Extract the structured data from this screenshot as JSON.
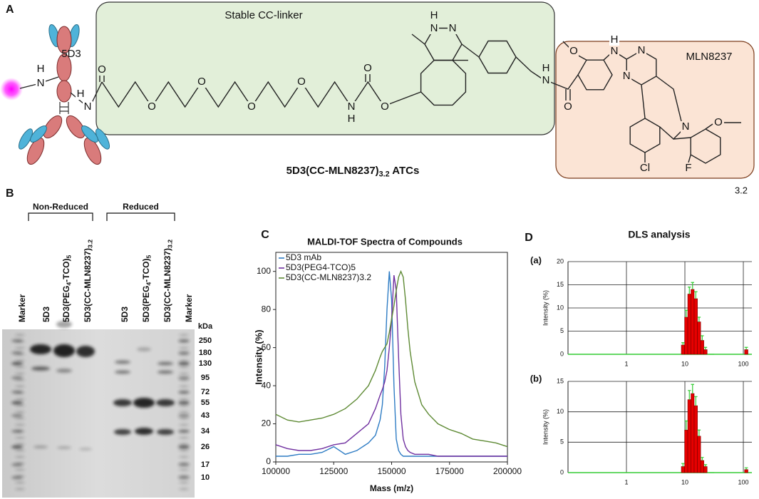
{
  "panel_a": {
    "label": "A",
    "antibody": "5D3",
    "linker": "Stable CC-linker",
    "payload": "MLN8237",
    "title": [
      "5D3(CC-MLN8237)",
      "3.2",
      " ATCs"
    ],
    "ratio": "3.2",
    "atoms": [
      "H",
      "N",
      "H",
      "N",
      "O",
      "O",
      "O",
      "O",
      "O",
      "N",
      "H",
      "O",
      "O",
      "H",
      "N",
      "N",
      "H",
      "N",
      "O",
      "O",
      "H",
      "N",
      "N",
      "N",
      "N",
      "O",
      "Cl",
      "F"
    ]
  },
  "panel_b": {
    "label": "B",
    "groups": [
      "Non-Reduced",
      "Reduced"
    ],
    "lanes": [
      [
        "Marker"
      ],
      [
        "5D3"
      ],
      [
        "5D3(PEG",
        "4",
        "-TCO)",
        "5"
      ],
      [
        "5D3(CC-MLN8237)",
        "3.2"
      ],
      [
        "5D3"
      ],
      [
        "5D3(PEG",
        "4",
        "-TCO)",
        "5"
      ],
      [
        "5D3(CC-MLN8237)",
        "3.2"
      ],
      [
        "Marker"
      ]
    ],
    "unit": "kDa",
    "markers": [
      250,
      180,
      130,
      95,
      72,
      55,
      43,
      34,
      26,
      17,
      10
    ]
  },
  "panel_d": {
    "label": "D",
    "title": "DLS analysis"
  },
  "chart_data": [
    {
      "type": "line",
      "panel": "C",
      "title": "MALDI-TOF Spectra of Compounds",
      "xlabel": "Mass (m/z)",
      "ylabel": "Intensity (%)",
      "x": [
        100000,
        105000,
        110000,
        115000,
        120000,
        125000,
        130000,
        135000,
        140000,
        143000,
        145000,
        146000,
        147000,
        148000,
        149000,
        150000,
        151000,
        152000,
        153000,
        154000,
        155000,
        156000,
        157000,
        158000,
        160000,
        163000,
        166000,
        170000,
        175000,
        180000,
        185000,
        190000,
        195000,
        200000
      ],
      "series": [
        {
          "name": "5D3 mAb",
          "color": "#2e7cc4",
          "values": [
            3,
            3,
            4,
            4,
            5,
            8,
            4,
            6,
            10,
            14,
            22,
            30,
            50,
            80,
            100,
            85,
            40,
            12,
            6,
            4,
            3,
            3,
            3,
            3,
            3,
            3,
            3,
            3,
            3,
            3,
            3,
            3,
            3,
            3
          ]
        },
        {
          "name": "5D3(PEG4-TCO)5",
          "color": "#7030a0",
          "values": [
            9,
            7,
            6,
            6,
            7,
            9,
            10,
            15,
            20,
            28,
            35,
            38,
            42,
            48,
            60,
            75,
            98,
            90,
            55,
            25,
            12,
            8,
            6,
            5,
            4,
            4,
            4,
            3,
            3,
            3,
            3,
            3,
            3,
            3
          ]
        },
        {
          "name": "5D3(CC-MLN8237)3.2",
          "color": "#5e8a34",
          "values": [
            25,
            22,
            21,
            22,
            23,
            25,
            28,
            33,
            40,
            48,
            55,
            58,
            60,
            62,
            68,
            75,
            82,
            90,
            97,
            100,
            97,
            85,
            70,
            58,
            42,
            30,
            25,
            20,
            17,
            15,
            12,
            11,
            10,
            8
          ]
        }
      ],
      "xlim": [
        100000,
        200000
      ],
      "xticks": [
        100000,
        125000,
        150000,
        175000,
        200000
      ],
      "ylim": [
        0,
        110
      ],
      "yticks": [
        0,
        20,
        40,
        60,
        80,
        100
      ],
      "legend": "upper left"
    },
    {
      "type": "histogram",
      "subtitle": "(a)",
      "ylabel": "Intensity (%)",
      "xscale": "log",
      "color": "#e60000",
      "error_color": "#33cc33",
      "bins": [
        8.7,
        9.9,
        11.2,
        12.7,
        14.4,
        16.4,
        18.6,
        21.1,
        24,
        105,
        120
      ],
      "values": [
        2,
        8,
        13,
        14,
        12,
        7,
        3,
        1,
        0,
        1
      ],
      "errors": [
        0.5,
        1.5,
        1.5,
        1.5,
        1.5,
        1,
        1,
        0.5,
        0,
        0.5
      ],
      "xlim": [
        0.1,
        140
      ],
      "xticks": [
        1,
        10,
        100
      ],
      "ylim": [
        0,
        20
      ],
      "yticks": [
        0,
        5,
        10,
        15,
        20
      ],
      "grid": true
    },
    {
      "type": "histogram",
      "subtitle": "(b)",
      "ylabel": "Intensity (%)",
      "xscale": "log",
      "color": "#e60000",
      "error_color": "#33cc33",
      "bins": [
        8.7,
        9.9,
        11.2,
        12.7,
        14.4,
        16.4,
        18.6,
        21.1,
        24,
        105,
        120
      ],
      "values": [
        1,
        7,
        12,
        13,
        11,
        6,
        2,
        1,
        0,
        0.5
      ],
      "errors": [
        0.5,
        1.5,
        1.5,
        1.5,
        1.5,
        1,
        0.5,
        0.3,
        0,
        0.3
      ],
      "xlim": [
        0.1,
        140
      ],
      "xticks": [
        1,
        10,
        100
      ],
      "ylim": [
        0,
        15
      ],
      "yticks": [
        0,
        5,
        10,
        15
      ],
      "grid": true
    }
  ]
}
